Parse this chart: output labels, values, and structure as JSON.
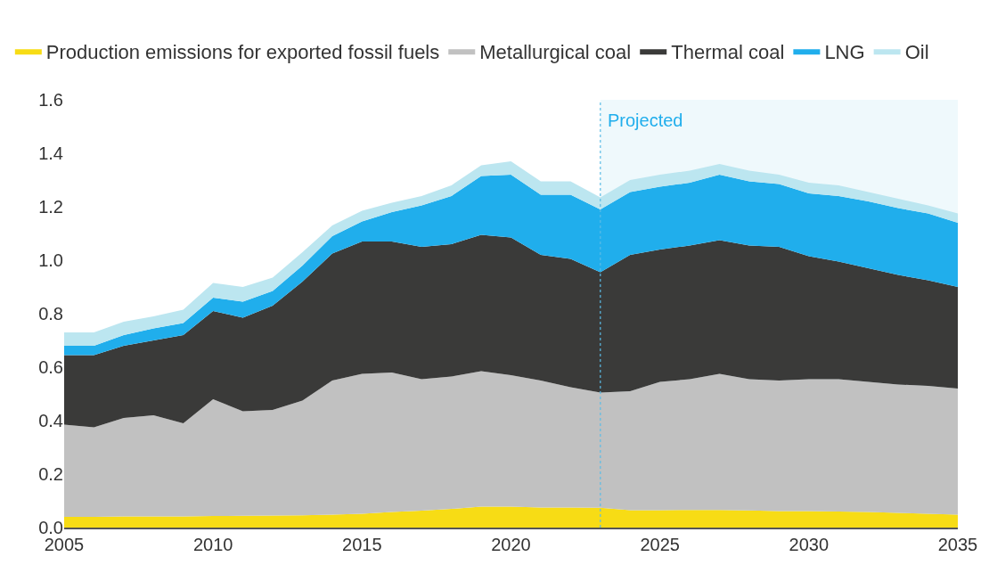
{
  "chart_data": {
    "type": "area",
    "stacked": true,
    "x": [
      2005,
      2006,
      2007,
      2008,
      2009,
      2010,
      2011,
      2012,
      2013,
      2014,
      2015,
      2016,
      2017,
      2018,
      2019,
      2020,
      2021,
      2022,
      2023,
      2024,
      2025,
      2026,
      2027,
      2028,
      2029,
      2030,
      2031,
      2032,
      2033,
      2034,
      2035
    ],
    "series": [
      {
        "name": "Production emissions for exported fossil fuels",
        "color": "#f7dc15",
        "values": [
          0.04,
          0.04,
          0.042,
          0.042,
          0.042,
          0.043,
          0.044,
          0.045,
          0.046,
          0.048,
          0.052,
          0.058,
          0.063,
          0.07,
          0.078,
          0.078,
          0.075,
          0.075,
          0.074,
          0.065,
          0.065,
          0.066,
          0.066,
          0.064,
          0.062,
          0.062,
          0.06,
          0.058,
          0.055,
          0.052,
          0.048
        ]
      },
      {
        "name": "Metallurgical coal",
        "color": "#c1c1c1",
        "values": [
          0.345,
          0.335,
          0.368,
          0.378,
          0.348,
          0.437,
          0.391,
          0.395,
          0.429,
          0.502,
          0.523,
          0.522,
          0.492,
          0.495,
          0.507,
          0.492,
          0.475,
          0.45,
          0.431,
          0.445,
          0.48,
          0.489,
          0.509,
          0.491,
          0.488,
          0.493,
          0.495,
          0.487,
          0.48,
          0.478,
          0.472
        ]
      },
      {
        "name": "Thermal coal",
        "color": "#3a3a39",
        "values": [
          0.26,
          0.27,
          0.27,
          0.28,
          0.33,
          0.33,
          0.35,
          0.39,
          0.445,
          0.475,
          0.495,
          0.49,
          0.495,
          0.495,
          0.51,
          0.515,
          0.47,
          0.48,
          0.45,
          0.51,
          0.495,
          0.5,
          0.5,
          0.5,
          0.5,
          0.46,
          0.44,
          0.425,
          0.41,
          0.395,
          0.38
        ]
      },
      {
        "name": "LNG",
        "color": "#20aeec",
        "values": [
          0.035,
          0.035,
          0.04,
          0.045,
          0.045,
          0.05,
          0.06,
          0.055,
          0.06,
          0.065,
          0.075,
          0.11,
          0.155,
          0.18,
          0.22,
          0.235,
          0.225,
          0.24,
          0.235,
          0.235,
          0.235,
          0.235,
          0.245,
          0.24,
          0.235,
          0.235,
          0.245,
          0.25,
          0.25,
          0.25,
          0.24
        ]
      },
      {
        "name": "Oil",
        "color": "#bce6f0",
        "values": [
          0.05,
          0.05,
          0.05,
          0.045,
          0.05,
          0.055,
          0.055,
          0.05,
          0.05,
          0.04,
          0.04,
          0.035,
          0.035,
          0.04,
          0.04,
          0.05,
          0.05,
          0.05,
          0.045,
          0.045,
          0.045,
          0.045,
          0.04,
          0.04,
          0.035,
          0.04,
          0.04,
          0.035,
          0.035,
          0.03,
          0.035
        ]
      }
    ],
    "xlim": [
      2005,
      2035
    ],
    "xticks": [
      2005,
      2010,
      2015,
      2020,
      2025,
      2030,
      2035
    ],
    "ylim": [
      0,
      1.6
    ],
    "yticks": [
      {
        "value": 0,
        "label": "0.0"
      },
      0.2,
      0.4,
      0.6,
      0.8,
      {
        "value": 1,
        "label": "1.0"
      },
      1.2,
      1.4,
      1.6
    ],
    "bands": [
      {
        "axis": "x",
        "from": 2023,
        "to": 2035,
        "label": "Projected",
        "color": "#eff9fc"
      }
    ],
    "ref_lines": [
      {
        "axis": "x",
        "value": 2023,
        "color": "#5bbce6",
        "line_style": "dotted"
      }
    ],
    "grid": false,
    "legend": "top"
  }
}
